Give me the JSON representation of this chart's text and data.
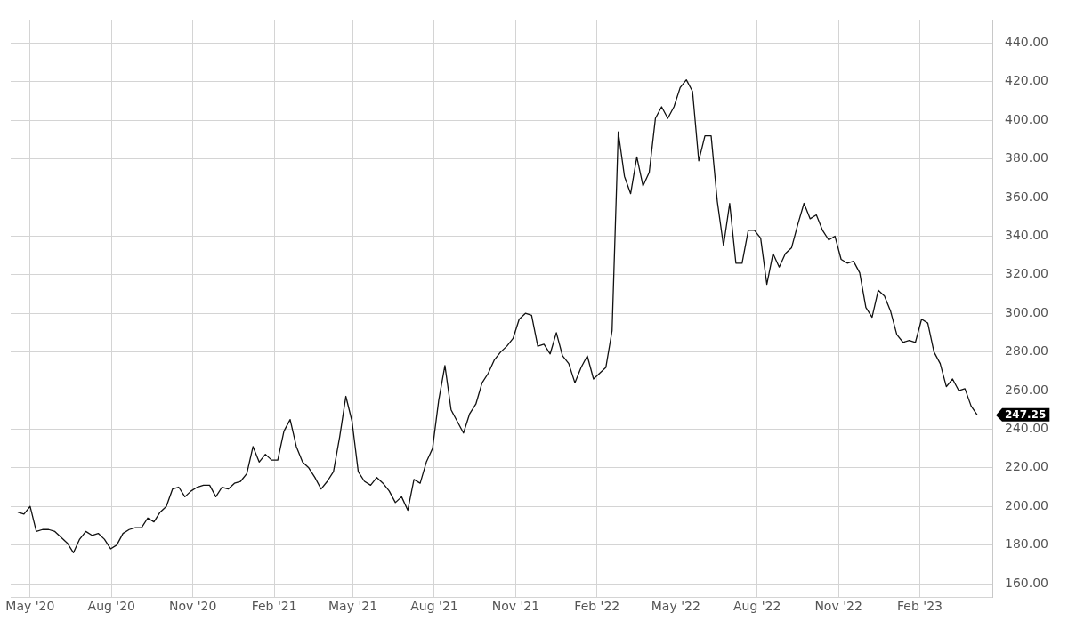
{
  "chart_data": {
    "type": "line",
    "x": [
      "2020-04-17",
      "2020-04-24",
      "2020-05-01",
      "2020-05-08",
      "2020-05-15",
      "2020-05-22",
      "2020-05-29",
      "2020-06-05",
      "2020-06-12",
      "2020-06-19",
      "2020-06-26",
      "2020-07-03",
      "2020-07-10",
      "2020-07-17",
      "2020-07-24",
      "2020-07-31",
      "2020-08-07",
      "2020-08-14",
      "2020-08-21",
      "2020-08-28",
      "2020-09-04",
      "2020-09-11",
      "2020-09-18",
      "2020-09-25",
      "2020-10-02",
      "2020-10-09",
      "2020-10-16",
      "2020-10-23",
      "2020-10-30",
      "2020-11-06",
      "2020-11-13",
      "2020-11-20",
      "2020-11-27",
      "2020-12-04",
      "2020-12-11",
      "2020-12-18",
      "2020-12-25",
      "2021-01-01",
      "2021-01-08",
      "2021-01-15",
      "2021-01-22",
      "2021-01-29",
      "2021-02-05",
      "2021-02-12",
      "2021-02-19",
      "2021-02-26",
      "2021-03-05",
      "2021-03-12",
      "2021-03-19",
      "2021-03-26",
      "2021-04-02",
      "2021-04-09",
      "2021-04-16",
      "2021-04-23",
      "2021-04-30",
      "2021-05-07",
      "2021-05-14",
      "2021-05-21",
      "2021-05-28",
      "2021-06-04",
      "2021-06-11",
      "2021-06-18",
      "2021-06-25",
      "2021-07-02",
      "2021-07-09",
      "2021-07-16",
      "2021-07-23",
      "2021-07-30",
      "2021-08-06",
      "2021-08-13",
      "2021-08-20",
      "2021-08-27",
      "2021-09-03",
      "2021-09-10",
      "2021-09-17",
      "2021-09-24",
      "2021-10-01",
      "2021-10-08",
      "2021-10-15",
      "2021-10-22",
      "2021-10-29",
      "2021-11-05",
      "2021-11-12",
      "2021-11-19",
      "2021-11-26",
      "2021-12-03",
      "2021-12-10",
      "2021-12-17",
      "2021-12-24",
      "2021-12-31",
      "2022-01-07",
      "2022-01-14",
      "2022-01-21",
      "2022-01-28",
      "2022-02-04",
      "2022-02-11",
      "2022-02-18",
      "2022-02-25",
      "2022-03-04",
      "2022-03-11",
      "2022-03-18",
      "2022-03-25",
      "2022-04-01",
      "2022-04-08",
      "2022-04-15",
      "2022-04-22",
      "2022-04-29",
      "2022-05-06",
      "2022-05-13",
      "2022-05-20",
      "2022-05-27",
      "2022-06-03",
      "2022-06-10",
      "2022-06-17",
      "2022-06-24",
      "2022-07-01",
      "2022-07-08",
      "2022-07-15",
      "2022-07-22",
      "2022-07-29",
      "2022-08-05",
      "2022-08-12",
      "2022-08-19",
      "2022-08-26",
      "2022-09-02",
      "2022-09-09",
      "2022-09-16",
      "2022-09-23",
      "2022-09-30",
      "2022-10-07",
      "2022-10-14",
      "2022-10-21",
      "2022-10-28",
      "2022-11-04",
      "2022-11-11",
      "2022-11-18",
      "2022-11-25",
      "2022-12-02",
      "2022-12-09",
      "2022-12-16",
      "2022-12-23",
      "2022-12-30",
      "2023-01-06",
      "2023-01-13",
      "2023-01-20",
      "2023-01-27",
      "2023-02-03",
      "2023-02-10",
      "2023-02-17",
      "2023-02-24",
      "2023-03-03",
      "2023-03-10",
      "2023-03-17",
      "2023-03-24",
      "2023-03-31",
      "2023-04-07"
    ],
    "series": [
      {
        "color": "#111111",
        "values": [
          197,
          196,
          200,
          187,
          188,
          188,
          187,
          184,
          181,
          176,
          183,
          187,
          185,
          186,
          183,
          178,
          180,
          186,
          188,
          189,
          189,
          194,
          192,
          197,
          200,
          209,
          210,
          205,
          208,
          210,
          211,
          211,
          205,
          210,
          209,
          212,
          213,
          217,
          231,
          223,
          227,
          224,
          224,
          239,
          245,
          231,
          223,
          220,
          215,
          209,
          213,
          218,
          236,
          257,
          244,
          218,
          213,
          211,
          215,
          212,
          208,
          202,
          205,
          198,
          214,
          212,
          223,
          230,
          255,
          273,
          250,
          244,
          238,
          248,
          253,
          264,
          269,
          276,
          280,
          283,
          287,
          297,
          300,
          299,
          283,
          284,
          279,
          290,
          278,
          274,
          264,
          272,
          278,
          266,
          269,
          272,
          291,
          394,
          371,
          362,
          381,
          366,
          373,
          401,
          407,
          401,
          407,
          417,
          421,
          415,
          379,
          392,
          392,
          358,
          335,
          357,
          326,
          326,
          343,
          343,
          339,
          315,
          331,
          324,
          331,
          334,
          346,
          357,
          349,
          351,
          343,
          338,
          340,
          328,
          326,
          327,
          321,
          303,
          298,
          312,
          309,
          301,
          289,
          285,
          286,
          285,
          297,
          295,
          280,
          274,
          262,
          266,
          260,
          261,
          252,
          247.25
        ]
      }
    ],
    "xlim": [
      "2020-04-09",
      "2023-04-24"
    ],
    "xticks": [
      {
        "value": "2020-05-01",
        "label": "May '20"
      },
      {
        "value": "2020-08-01",
        "label": "Aug '20"
      },
      {
        "value": "2020-11-01",
        "label": "Nov '20"
      },
      {
        "value": "2021-02-01",
        "label": "Feb '21"
      },
      {
        "value": "2021-05-01",
        "label": "May '21"
      },
      {
        "value": "2021-08-01",
        "label": "Aug '21"
      },
      {
        "value": "2021-11-01",
        "label": "Nov '21"
      },
      {
        "value": "2022-02-01",
        "label": "Feb '22"
      },
      {
        "value": "2022-05-01",
        "label": "May '22"
      },
      {
        "value": "2022-08-01",
        "label": "Aug '22"
      },
      {
        "value": "2022-11-01",
        "label": "Nov '22"
      },
      {
        "value": "2023-02-01",
        "label": "Feb '23"
      }
    ],
    "ylim": [
      153,
      452
    ],
    "yticks": [
      {
        "value": 160,
        "label": "160.00"
      },
      {
        "value": 180,
        "label": "180.00"
      },
      {
        "value": 200,
        "label": "200.00"
      },
      {
        "value": 220,
        "label": "220.00"
      },
      {
        "value": 240,
        "label": "240.00"
      },
      {
        "value": 260,
        "label": "260.00"
      },
      {
        "value": 280,
        "label": "280.00"
      },
      {
        "value": 300,
        "label": "300.00"
      },
      {
        "value": 320,
        "label": "320.00"
      },
      {
        "value": 340,
        "label": "340.00"
      },
      {
        "value": 360,
        "label": "360.00"
      },
      {
        "value": 380,
        "label": "380.00"
      },
      {
        "value": 400,
        "label": "400.00"
      },
      {
        "value": 420,
        "label": "420.00"
      },
      {
        "value": 440,
        "label": "440.00"
      }
    ],
    "grid": true,
    "legend": false,
    "marker": "none",
    "line_style": "solid",
    "annotations": [
      {
        "text": "247.25",
        "x": "2023-04-07",
        "y": 247.25
      }
    ]
  }
}
